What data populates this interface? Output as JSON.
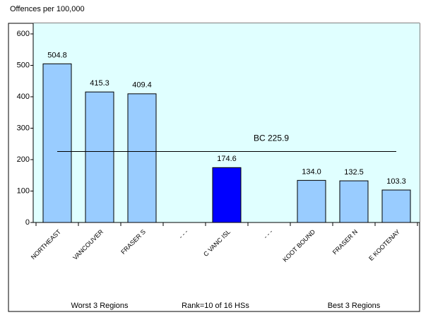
{
  "chart_data": {
    "type": "bar",
    "title": "Offences per 100,000",
    "categories": [
      "NORTHEAST",
      "VANCOUVER",
      "FRASER S",
      "- - -",
      "C VANC ISL",
      "- - -",
      "KOOT BOUND",
      "FRASER N",
      "E KOOTENAY"
    ],
    "values": [
      504.8,
      415.3,
      409.4,
      null,
      174.6,
      null,
      134.0,
      132.5,
      103.3
    ],
    "value_labels": [
      "504.8",
      "415.3",
      "409.4",
      null,
      "174.6",
      null,
      "134.0",
      "132.5",
      "103.3"
    ],
    "colors": [
      "#99ccff",
      "#99ccff",
      "#99ccff",
      null,
      "#0000ff",
      null,
      "#99ccff",
      "#99ccff",
      "#99ccff"
    ],
    "reference_line": {
      "label": "BC 225.9",
      "value": 225.9
    },
    "group_labels": [
      "Worst 3 Regions",
      "Rank=10 of 16 HSs",
      "Best 3 Regions"
    ],
    "ylim": [
      0,
      600
    ],
    "yticks": [
      0,
      100,
      200,
      300,
      400,
      500,
      600
    ]
  }
}
